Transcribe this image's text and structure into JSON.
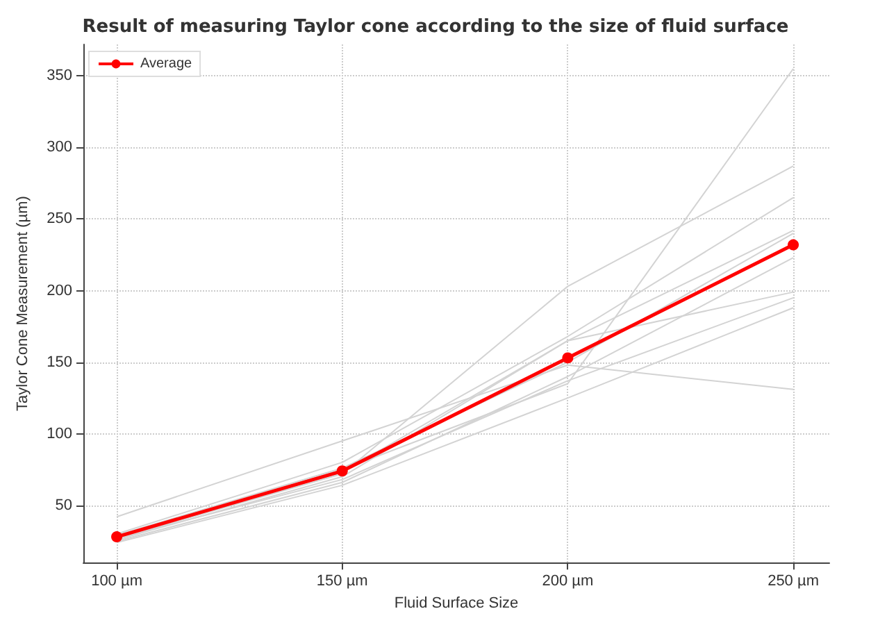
{
  "chart_data": {
    "type": "line",
    "title": "Result of measuring Taylor cone according to the size of fluid surface",
    "xlabel": "Fluid Surface Size",
    "ylabel": "Taylor Cone Measurement (µm)",
    "x": [
      100,
      150,
      200,
      250
    ],
    "xlim": [
      92.6,
      258
    ],
    "xticks": [
      {
        "value": 100,
        "label": "100 µm"
      },
      {
        "value": 150,
        "label": "150 µm"
      },
      {
        "value": 200,
        "label": "200 µm"
      },
      {
        "value": 250,
        "label": "250 µm"
      }
    ],
    "ylim": [
      10,
      372
    ],
    "yticks": [
      50,
      100,
      150,
      200,
      250,
      300,
      350
    ],
    "grid": true,
    "legend": "top left",
    "series": [
      {
        "color": "#d3d3d3",
        "marker": "none",
        "values": [
          28,
          75,
          135,
          355
        ]
      },
      {
        "color": "#d3d3d3",
        "marker": "none",
        "values": [
          27,
          72,
          203,
          287
        ]
      },
      {
        "color": "#d3d3d3",
        "marker": "none",
        "values": [
          30,
          80,
          168,
          265
        ]
      },
      {
        "color": "#d3d3d3",
        "marker": "none",
        "values": [
          26,
          70,
          165,
          242
        ]
      },
      {
        "color": "#d3d3d3",
        "marker": "none",
        "values": [
          29,
          76,
          150,
          240
        ]
      },
      {
        "color": "#d3d3d3",
        "marker": "none",
        "values": [
          25,
          66,
          140,
          223
        ]
      },
      {
        "color": "#d3d3d3",
        "marker": "none",
        "values": [
          28,
          73,
          165,
          199
        ]
      },
      {
        "color": "#d3d3d3",
        "marker": "none",
        "values": [
          27,
          68,
          137,
          195
        ]
      },
      {
        "color": "#d3d3d3",
        "marker": "none",
        "values": [
          24,
          64,
          125,
          188
        ]
      },
      {
        "color": "#d3d3d3",
        "marker": "none",
        "values": [
          42,
          95,
          148,
          131
        ]
      },
      {
        "name": "Average",
        "color": "#ff0000",
        "marker": "circle",
        "values": [
          28,
          74,
          153,
          232
        ]
      }
    ]
  }
}
